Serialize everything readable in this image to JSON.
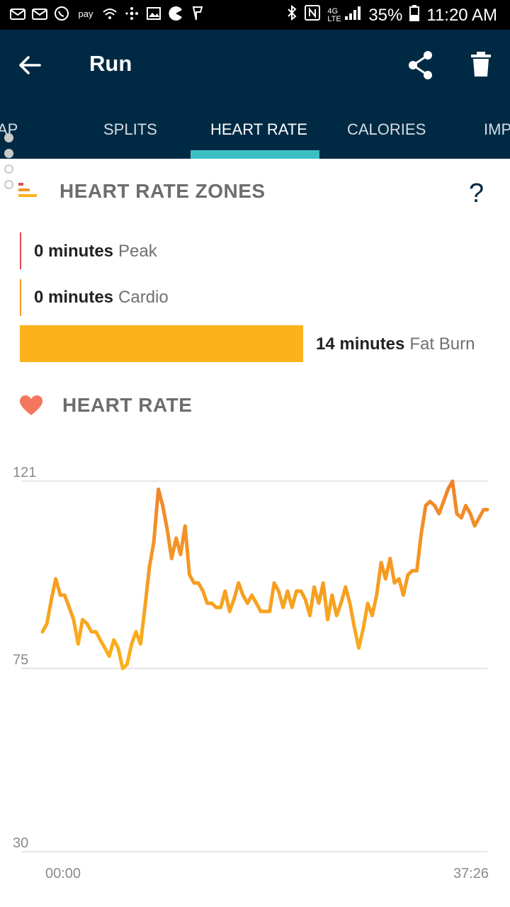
{
  "status_bar": {
    "battery": "35%",
    "time": "11:20 AM",
    "left_icons": [
      "mail-icon",
      "mail-icon",
      "whatsapp-icon",
      "samsung-pay-icon",
      "wifi-call-icon",
      "fitbit-icon",
      "image-icon",
      "pacman-icon",
      "foursquare-icon"
    ],
    "right_icons": [
      "bluetooth-icon",
      "nfc-icon",
      "4g-lte-icon",
      "signal-icon",
      "battery-icon"
    ]
  },
  "app_bar": {
    "title": "Run",
    "color": "#002a44"
  },
  "tabs": {
    "items": [
      "AP",
      "SPLITS",
      "HEART RATE",
      "CALORIES",
      "IMP"
    ],
    "active": "HEART RATE",
    "indicator_color": "#3cbfc3"
  },
  "zones": {
    "title": "HEART RATE ZONES",
    "help": "?",
    "peak": {
      "minutes": "0 minutes",
      "name": "Peak",
      "value": 0,
      "color": "#e04a52"
    },
    "cardio": {
      "minutes": "0 minutes",
      "name": "Cardio",
      "value": 0,
      "color": "#f39a2a"
    },
    "fatburn": {
      "minutes": "14 minutes",
      "name": "Fat Burn",
      "value": 14,
      "color": "#fbb21b"
    }
  },
  "heart_rate": {
    "title": "HEART RATE",
    "heart_color": "#f4765f"
  },
  "chart_data": {
    "type": "line",
    "title": "HEART RATE",
    "x_labels": [
      "00:00",
      "37:26"
    ],
    "x_range": [
      "00:00",
      "37:26"
    ],
    "y_ticks": [
      121,
      75,
      30
    ],
    "ylim": [
      30,
      121
    ],
    "grid": true,
    "colors": [
      "#fbb21b",
      "#f0832a"
    ],
    "series": [
      {
        "x": [
          "00:00",
          "00:22",
          "00:45",
          "01:07",
          "01:30",
          "01:52",
          "02:15",
          "02:37",
          "03:00",
          "03:22",
          "03:45",
          "04:07",
          "04:30",
          "04:52",
          "05:15",
          "05:37",
          "06:00",
          "06:22",
          "06:45",
          "07:07",
          "07:30",
          "07:52",
          "08:15",
          "08:37",
          "09:00",
          "09:22",
          "09:45",
          "10:07",
          "10:30",
          "10:52",
          "11:15",
          "11:37",
          "12:00",
          "12:22",
          "12:45",
          "13:07",
          "13:30",
          "13:52",
          "14:15",
          "14:37",
          "15:00",
          "15:22",
          "15:45",
          "16:07",
          "16:30",
          "16:52",
          "17:15",
          "17:37",
          "18:00",
          "18:22",
          "18:45",
          "19:07",
          "19:30",
          "19:52",
          "20:15",
          "20:37",
          "21:00",
          "21:22",
          "21:45",
          "22:07",
          "22:30",
          "22:52",
          "23:15",
          "23:37",
          "24:00",
          "24:22",
          "24:45",
          "25:07",
          "25:30",
          "25:52",
          "26:15",
          "26:37",
          "27:00",
          "27:22",
          "27:45",
          "28:07",
          "28:30",
          "28:52",
          "29:15",
          "29:37",
          "30:00",
          "30:22",
          "30:45",
          "31:07",
          "31:30",
          "31:52",
          "32:15",
          "32:37",
          "33:00",
          "33:22",
          "33:45",
          "34:07",
          "34:30",
          "34:52",
          "35:15",
          "35:37",
          "36:00",
          "36:22",
          "36:45",
          "37:07",
          "37:26"
        ],
        "y": [
          84,
          86,
          92,
          97,
          93,
          93,
          90,
          87,
          81,
          87,
          86,
          84,
          84,
          82,
          80,
          78,
          82,
          80,
          75,
          76,
          81,
          84,
          81,
          90,
          100,
          106,
          119,
          115,
          109,
          102,
          107,
          103,
          110,
          98,
          96,
          96,
          94,
          91,
          91,
          90,
          90,
          94,
          89,
          92,
          96,
          93,
          91,
          93,
          91,
          89,
          89,
          89,
          96,
          94,
          90,
          94,
          90,
          94,
          94,
          92,
          88,
          95,
          91,
          96,
          87,
          93,
          88,
          91,
          95,
          91,
          85,
          80,
          85,
          91,
          88,
          93,
          101,
          97,
          102,
          96,
          97,
          93,
          98,
          99,
          99,
          108,
          115,
          116,
          115,
          113,
          116,
          119,
          121,
          113,
          112,
          115,
          113,
          110,
          112,
          114,
          114
        ],
        "name": ""
      }
    ]
  }
}
